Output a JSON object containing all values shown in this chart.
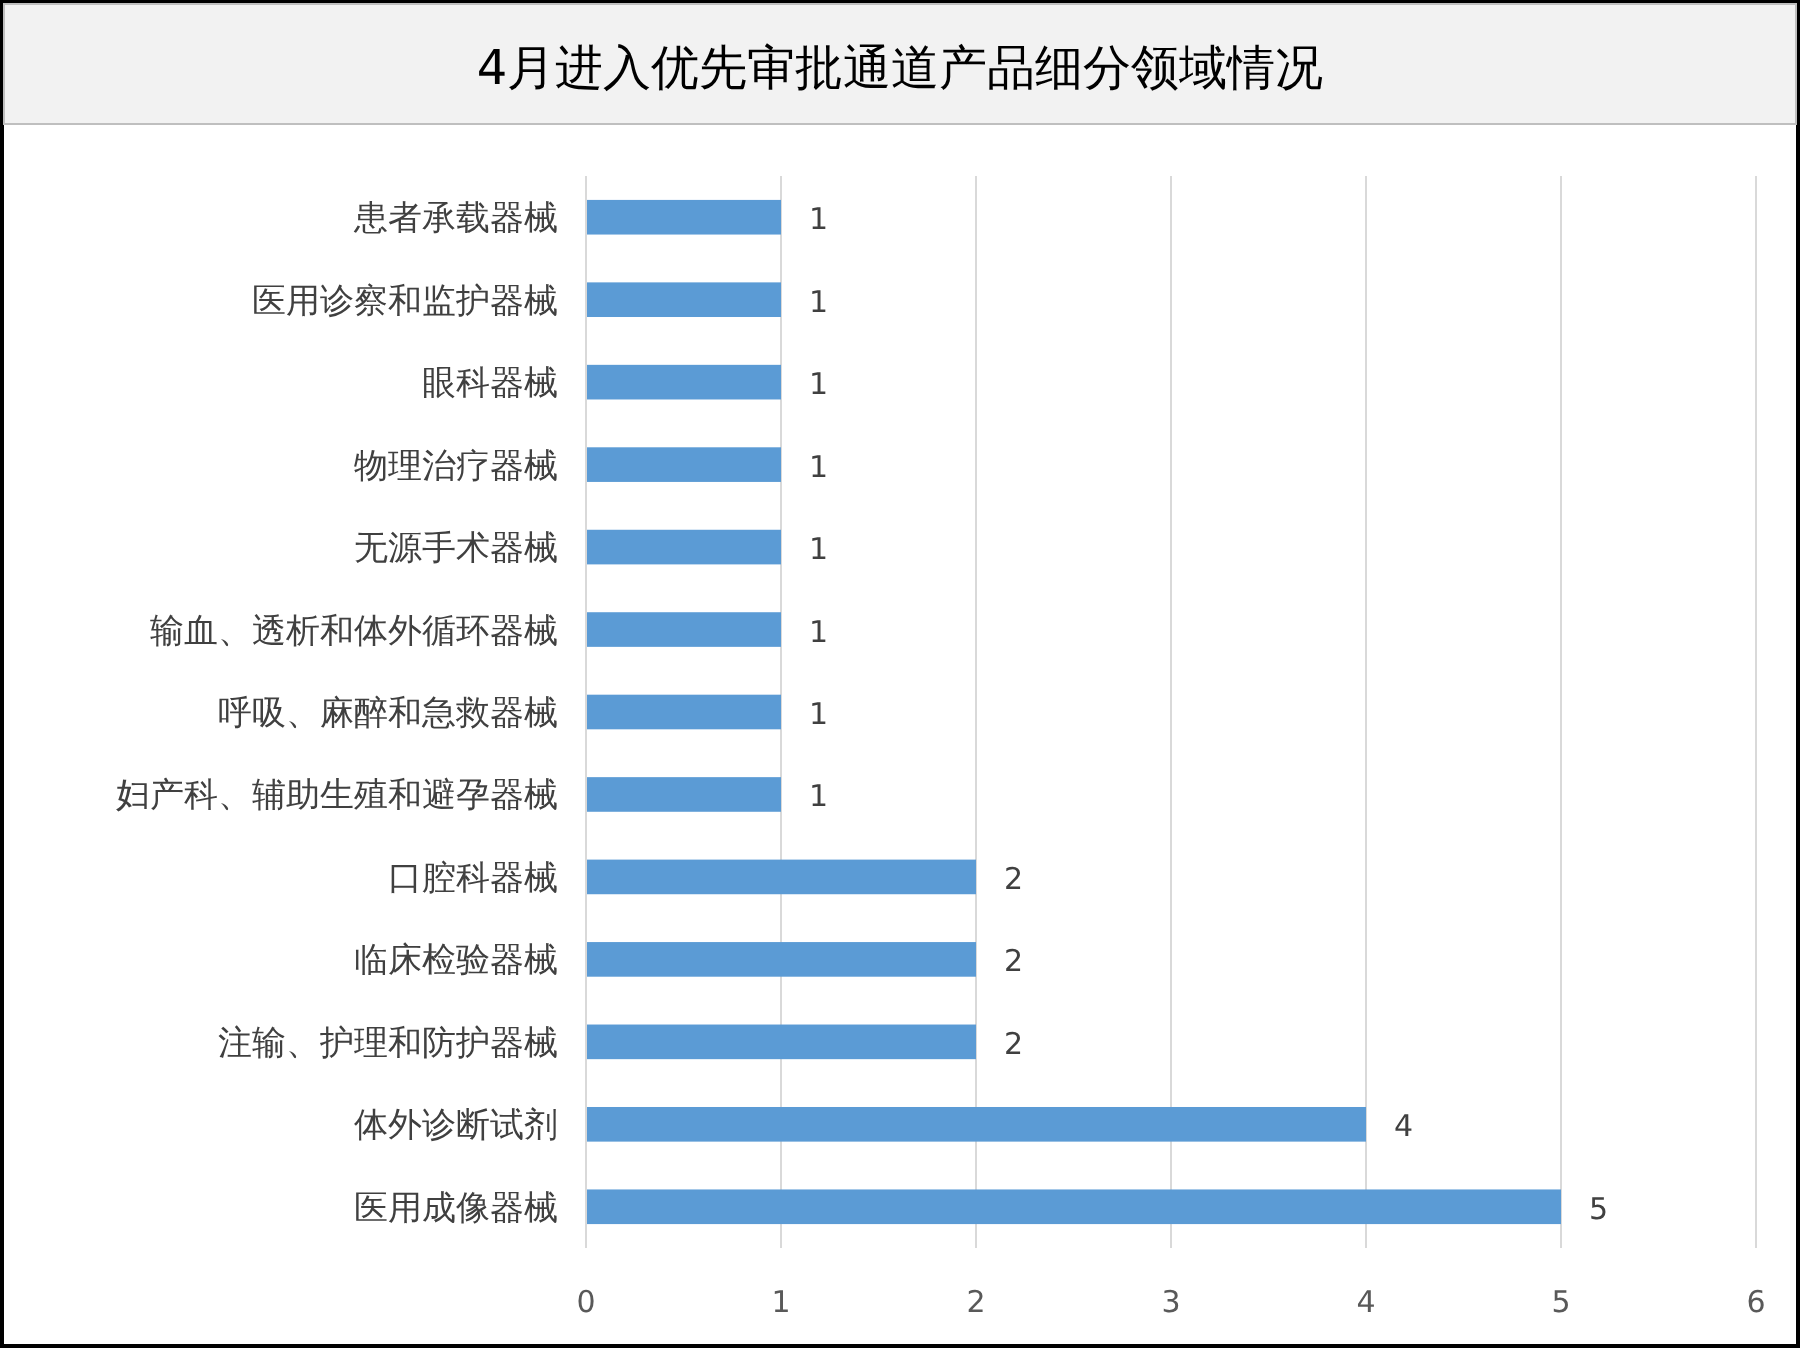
{
  "chart_data": {
    "type": "bar",
    "orientation": "horizontal",
    "title": "4月进入优先审批通道产品细分领域情况",
    "categories": [
      "患者承载器械",
      "医用诊察和监护器械",
      "眼科器械",
      "物理治疗器械",
      "无源手术器械",
      "输血、透析和体外循环器械",
      "呼吸、麻醉和急救器械",
      "妇产科、辅助生殖和避孕器械",
      "口腔科器械",
      "临床检验器械",
      "注输、护理和防护器械",
      "体外诊断试剂",
      "医用成像器械"
    ],
    "values": [
      1,
      1,
      1,
      1,
      1,
      1,
      1,
      1,
      2,
      2,
      2,
      4,
      5
    ],
    "color": "#5b9bd5",
    "xlim": [
      0,
      6
    ],
    "xticks": [
      0,
      1,
      2,
      3,
      4,
      5,
      6
    ],
    "grid": "x",
    "data_labels": true
  }
}
